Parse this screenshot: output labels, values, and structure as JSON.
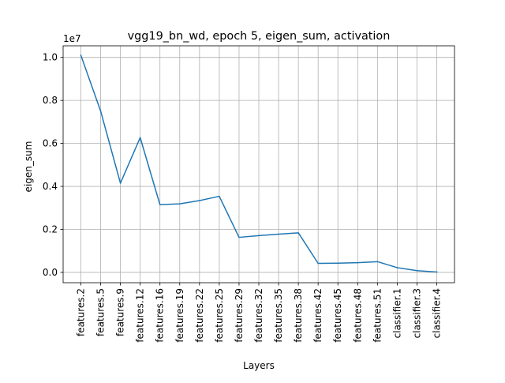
{
  "chart_data": {
    "type": "line",
    "title": "vgg19_bn_wd, epoch 5, eigen_sum, activation",
    "xlabel": "Layers",
    "ylabel": "eigen_sum",
    "y_offset_label": "1e7",
    "categories": [
      "features.2",
      "features.5",
      "features.9",
      "features.12",
      "features.16",
      "features.19",
      "features.22",
      "features.25",
      "features.29",
      "features.32",
      "features.35",
      "features.38",
      "features.42",
      "features.45",
      "features.48",
      "features.51",
      "classifier.1",
      "classifier.3",
      "classifier.4"
    ],
    "series": [
      {
        "values": [
          10100000,
          7500000,
          4150000,
          6270000,
          3150000,
          3190000,
          3340000,
          3540000,
          1630000,
          1710000,
          1780000,
          1840000,
          420000,
          430000,
          450000,
          500000,
          220000,
          80000,
          20000
        ],
        "color": "#1f77b4"
      }
    ],
    "yticks": [
      "0.0",
      "0.2",
      "0.4",
      "0.6",
      "0.8",
      "1.0"
    ],
    "ytick_values": [
      0,
      2000000,
      4000000,
      6000000,
      8000000,
      10000000
    ],
    "ylim": [
      -480000,
      10540000
    ],
    "grid": true
  }
}
